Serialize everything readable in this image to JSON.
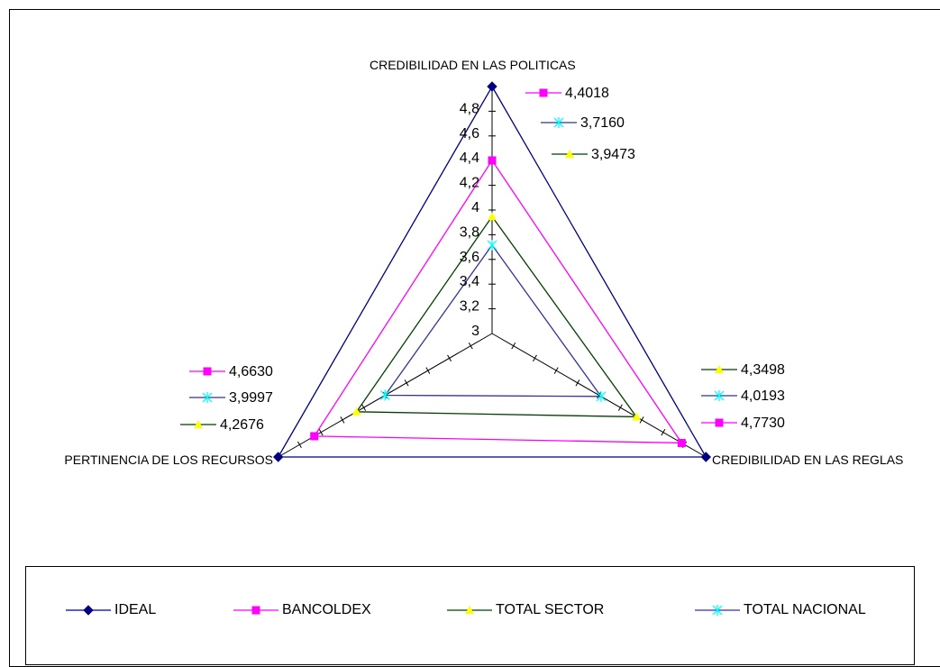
{
  "chart_data": {
    "type": "radar",
    "axes": [
      "CREDIBILIDAD EN LAS POLITICAS",
      "CREDIBILIDAD EN LAS REGLAS",
      "PERTINENCIA DE LOS RECURSOS"
    ],
    "rlim": [
      3,
      5
    ],
    "tick_labels": [
      "3",
      "3,2",
      "3,4",
      "3,6",
      "3,8",
      "4",
      "4,2",
      "4,4",
      "4,6",
      "4,8"
    ],
    "series": [
      {
        "name": "IDEAL",
        "values": [
          5,
          5,
          5
        ],
        "color": "#000080",
        "marker": "diamond",
        "labels": []
      },
      {
        "name": "BANCOLDEX",
        "values": [
          4.4018,
          4.773,
          4.663
        ],
        "color": "#ff00ff",
        "marker": "square",
        "labels": [
          "4,4018",
          "4,7730",
          "4,6630"
        ]
      },
      {
        "name": "TOTAL SECTOR",
        "values": [
          3.9473,
          4.3498,
          4.2676
        ],
        "color": "#004000",
        "marker": "triangle",
        "marker_color": "#ffff00",
        "labels": [
          "3,9473",
          "4,3498",
          "4,2676"
        ]
      },
      {
        "name": "TOTAL NACIONAL",
        "values": [
          3.716,
          4.0193,
          3.9997
        ],
        "color": "#333399",
        "marker": "x",
        "marker_color": "#00ffff",
        "labels": [
          "3,7160",
          "4,0193",
          "3,9997"
        ]
      }
    ],
    "legend_position": "bottom"
  }
}
